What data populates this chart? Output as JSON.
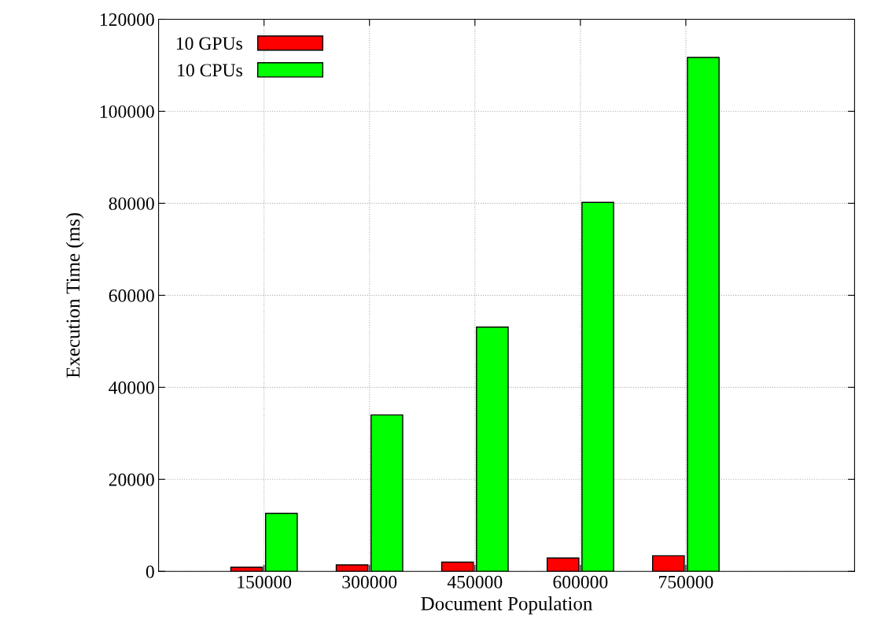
{
  "chart_data": {
    "type": "bar",
    "xlabel": "Document Population",
    "ylabel": "Execution Time (ms)",
    "categories": [
      "150000",
      "300000",
      "450000",
      "600000",
      "750000"
    ],
    "series": [
      {
        "name": "10 GPUs",
        "color": "#ff0000",
        "values": [
          900,
          1400,
          2000,
          2900,
          3400
        ]
      },
      {
        "name": "10 CPUs",
        "color": "#00ff00",
        "values": [
          12600,
          34000,
          53100,
          80200,
          111700
        ]
      }
    ],
    "ylim": [
      0,
      120000
    ],
    "yticks": [
      0,
      20000,
      40000,
      60000,
      80000,
      100000,
      120000
    ],
    "grid": true,
    "legend": "top left"
  }
}
